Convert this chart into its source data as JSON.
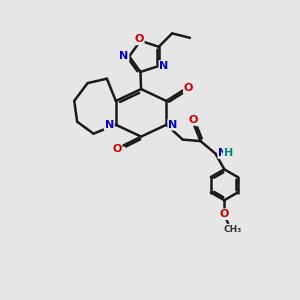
{
  "background_color": "#e6e6e6",
  "atom_colors": {
    "C": "#1a1a1a",
    "N": "#0000cc",
    "O": "#cc0000",
    "H": "#008888"
  },
  "bond_color": "#1a1a1a",
  "bond_width": 1.8,
  "figsize": [
    3.0,
    3.0
  ],
  "dpi": 100
}
